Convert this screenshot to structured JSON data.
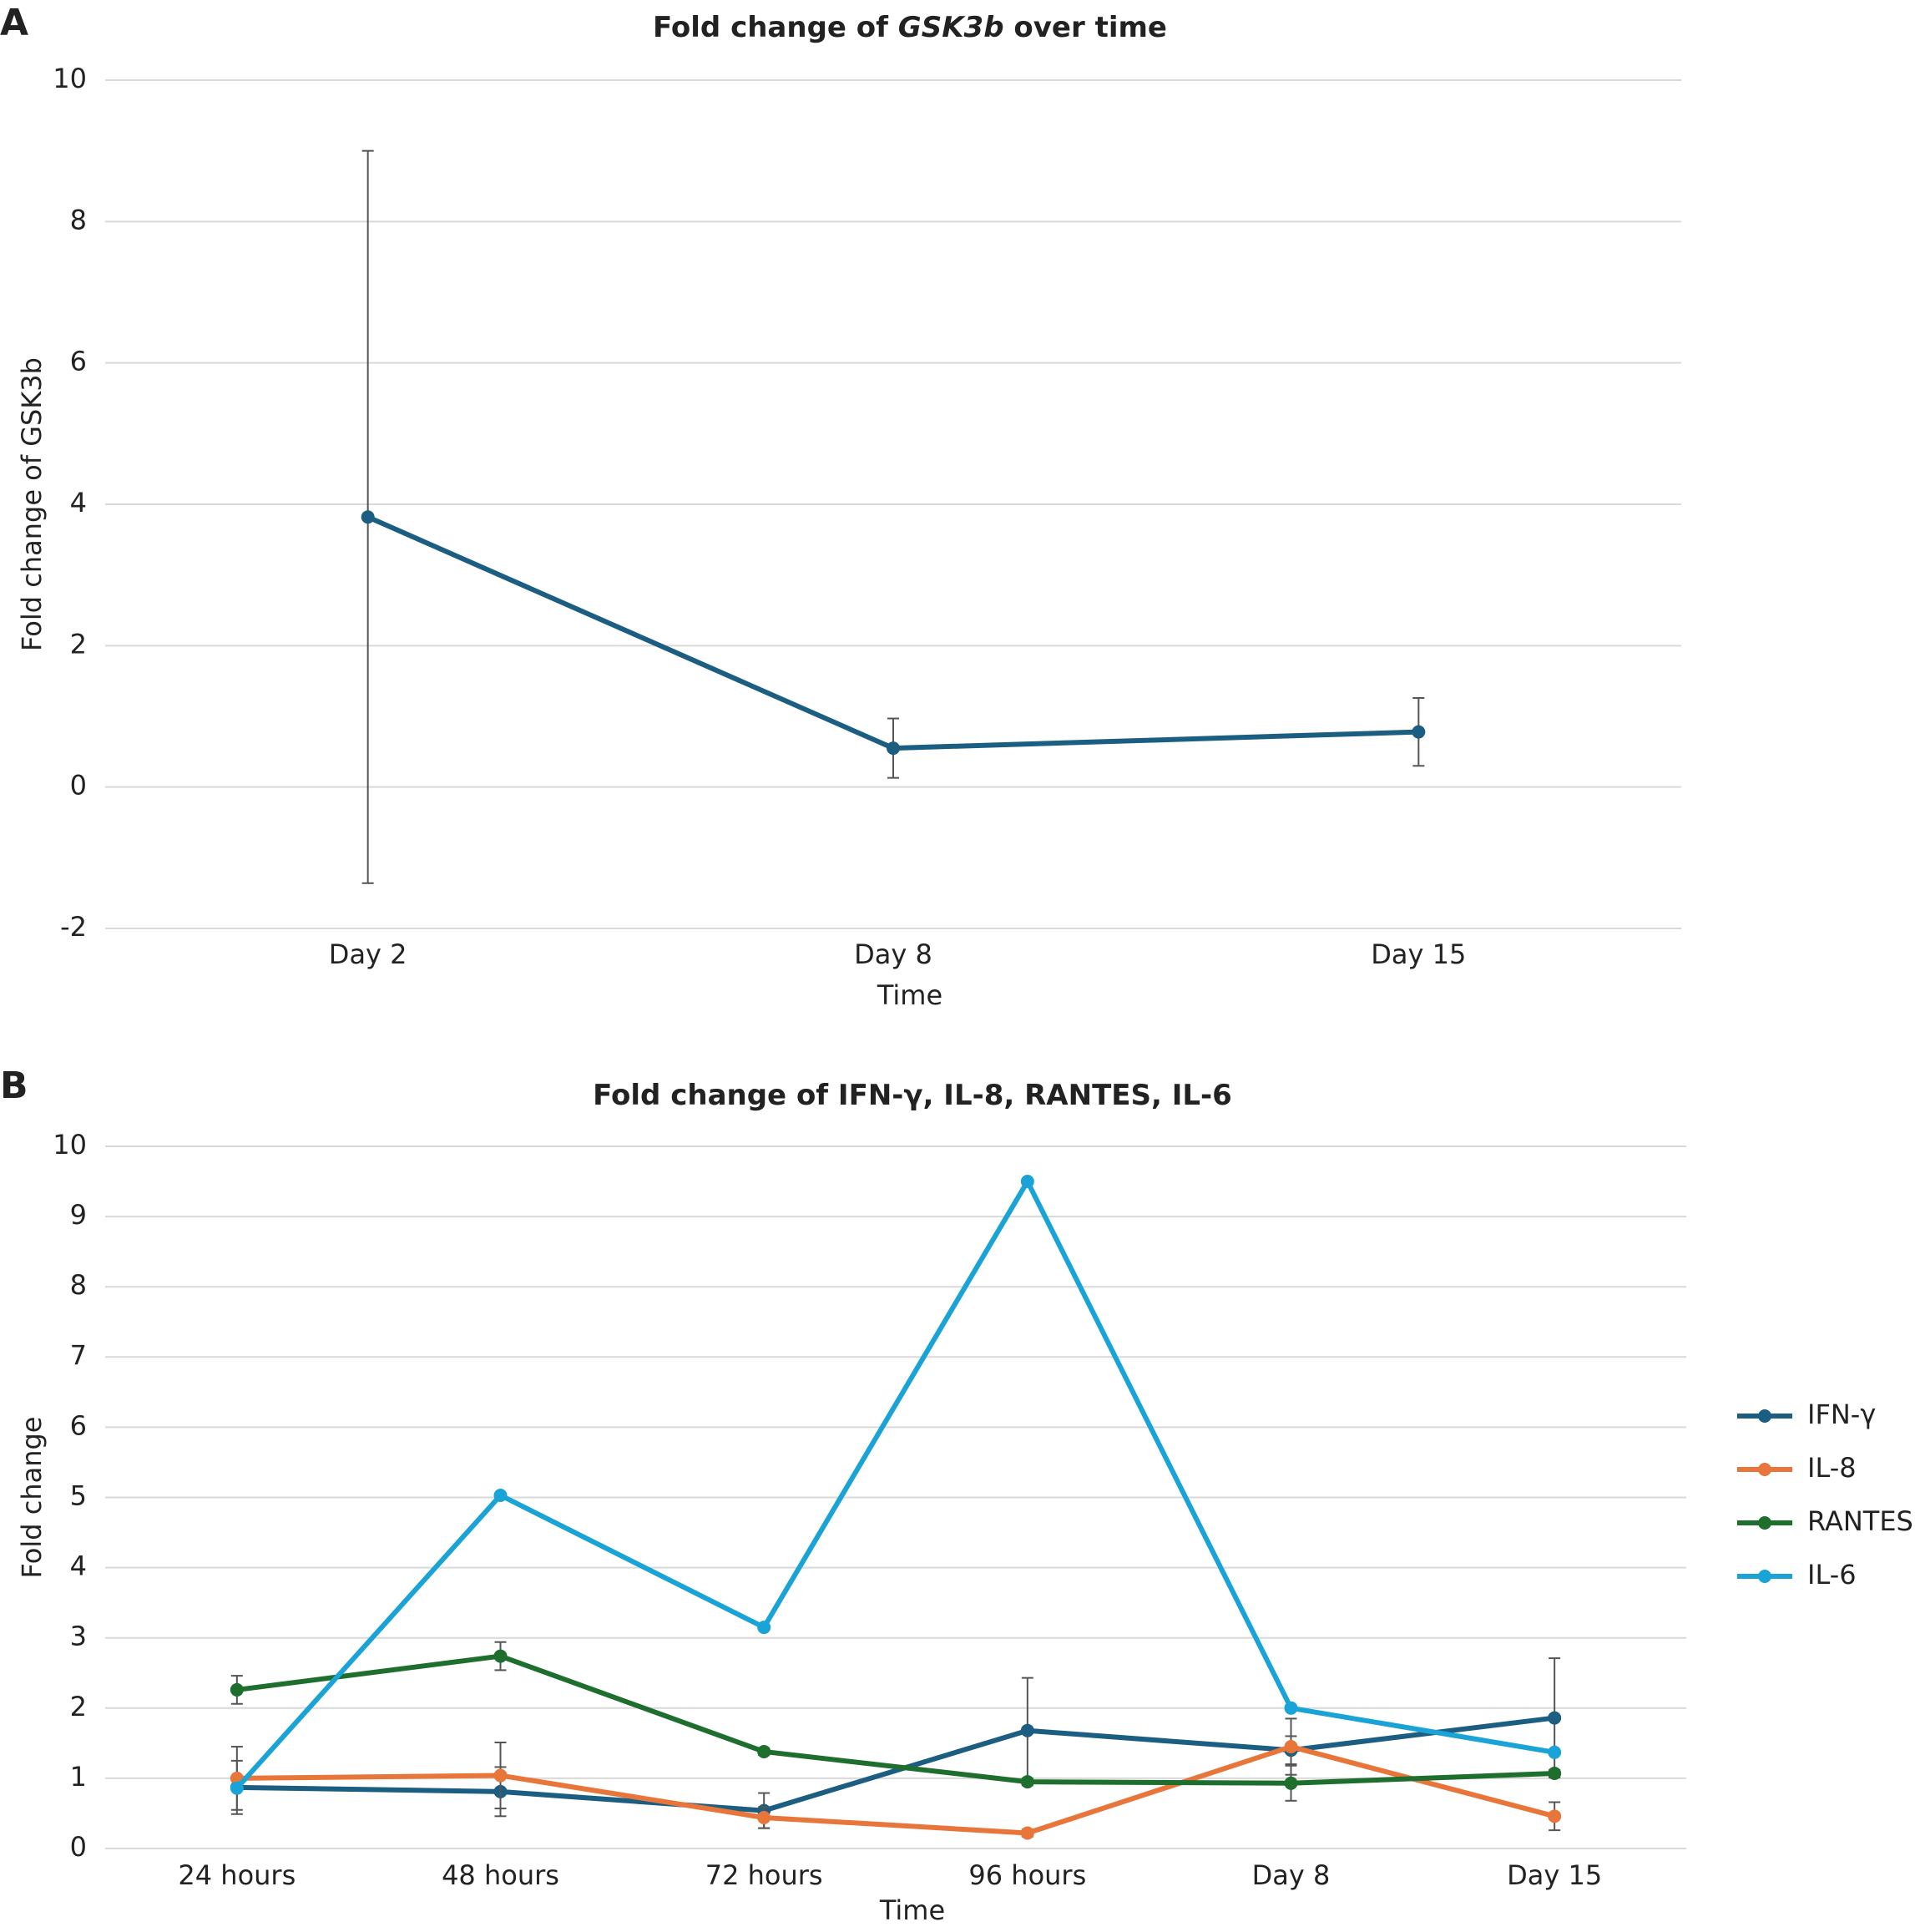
{
  "chart_data": [
    {
      "type": "line",
      "panel_label": "A",
      "title": [
        "Fold change of ",
        "GSK3b",
        " over time"
      ],
      "title_italic": [
        false,
        true,
        false
      ],
      "x_label": "Time",
      "y_label": "Fold change of GSK3b",
      "categories": [
        "Day 2",
        "Day 8",
        "Day 15"
      ],
      "values": [
        3.82,
        0.55,
        0.78
      ],
      "errors": [
        5.18,
        0.42,
        0.48
      ],
      "color": "#1b5e82",
      "ylim": [
        -2,
        10
      ],
      "yticks": [
        -2,
        0,
        2,
        4,
        6,
        8,
        10
      ],
      "grid": true
    },
    {
      "type": "line",
      "panel_label": "B",
      "title": [
        "Fold change of IFN-γ, IL-8, RANTES, IL-6"
      ],
      "title_italic": [
        false
      ],
      "x_label": "Time",
      "y_label": "Fold change",
      "categories": [
        "24 hours",
        "48 hours",
        "72 hours",
        "96 hours",
        "Day 8",
        "Day 15"
      ],
      "series": [
        {
          "name": "IFN-γ",
          "color": "#1b5e82",
          "values": [
            0.87,
            0.81,
            0.54,
            1.68,
            1.4,
            1.86
          ],
          "errors": [
            0.38,
            0.35,
            0.25,
            0.75,
            0.2,
            0.85
          ]
        },
        {
          "name": "IL-8",
          "color": "#e8763a",
          "values": [
            1.0,
            1.04,
            0.44,
            0.22,
            1.45,
            0.46
          ],
          "errors": [
            0.45,
            0.47,
            0.15,
            0.05,
            0.4,
            0.2
          ]
        },
        {
          "name": "RANTES",
          "color": "#1e6e2e",
          "values": [
            2.26,
            2.74,
            1.38,
            0.95,
            0.93,
            1.07
          ],
          "errors": [
            0.2,
            0.2,
            0.05,
            0.05,
            0.25,
            0.05
          ]
        },
        {
          "name": "IL-6",
          "color": "#1aa3d6",
          "values": [
            0.86,
            5.03,
            3.15,
            9.5,
            2.0,
            1.37
          ]
        }
      ],
      "ylim": [
        0,
        10
      ],
      "yticks": [
        0,
        1,
        2,
        3,
        4,
        5,
        6,
        7,
        8,
        9,
        10
      ],
      "grid": true,
      "legend": "right"
    }
  ]
}
